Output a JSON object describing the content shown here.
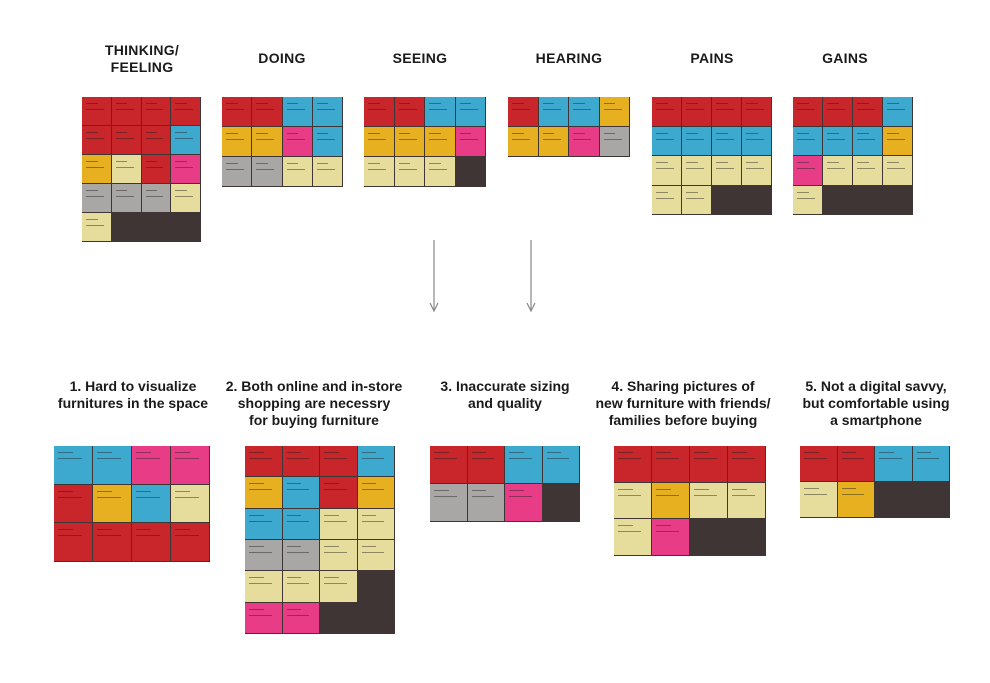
{
  "colors": {
    "red": "#c8262a",
    "blue": "#3ea9cf",
    "yellow": "#e6b020",
    "pink": "#e83c86",
    "grey": "#a9a7a5",
    "cream": "#e6dc9c",
    "board": "#3e3534",
    "arrow": "#888888"
  },
  "categories": [
    {
      "label": "THINKING/\nFEELING"
    },
    {
      "label": "DOING"
    },
    {
      "label": "SEEING"
    },
    {
      "label": "HEARING"
    },
    {
      "label": "PAINS"
    },
    {
      "label": "GAINS"
    }
  ],
  "insights": [
    {
      "label": "1. Hard to visualize\nfurnitures in the space"
    },
    {
      "label": "2. Both online and in-store\nshopping are necessry\nfor buying furniture"
    },
    {
      "label": "3. Inaccurate sizing\nand quality"
    },
    {
      "label": "4. Sharing pictures of\nnew furniture with friends/\nfamilies before buying"
    },
    {
      "label": "5. Not a digital savvy,\nbut comfortable using\na smartphone"
    }
  ]
}
